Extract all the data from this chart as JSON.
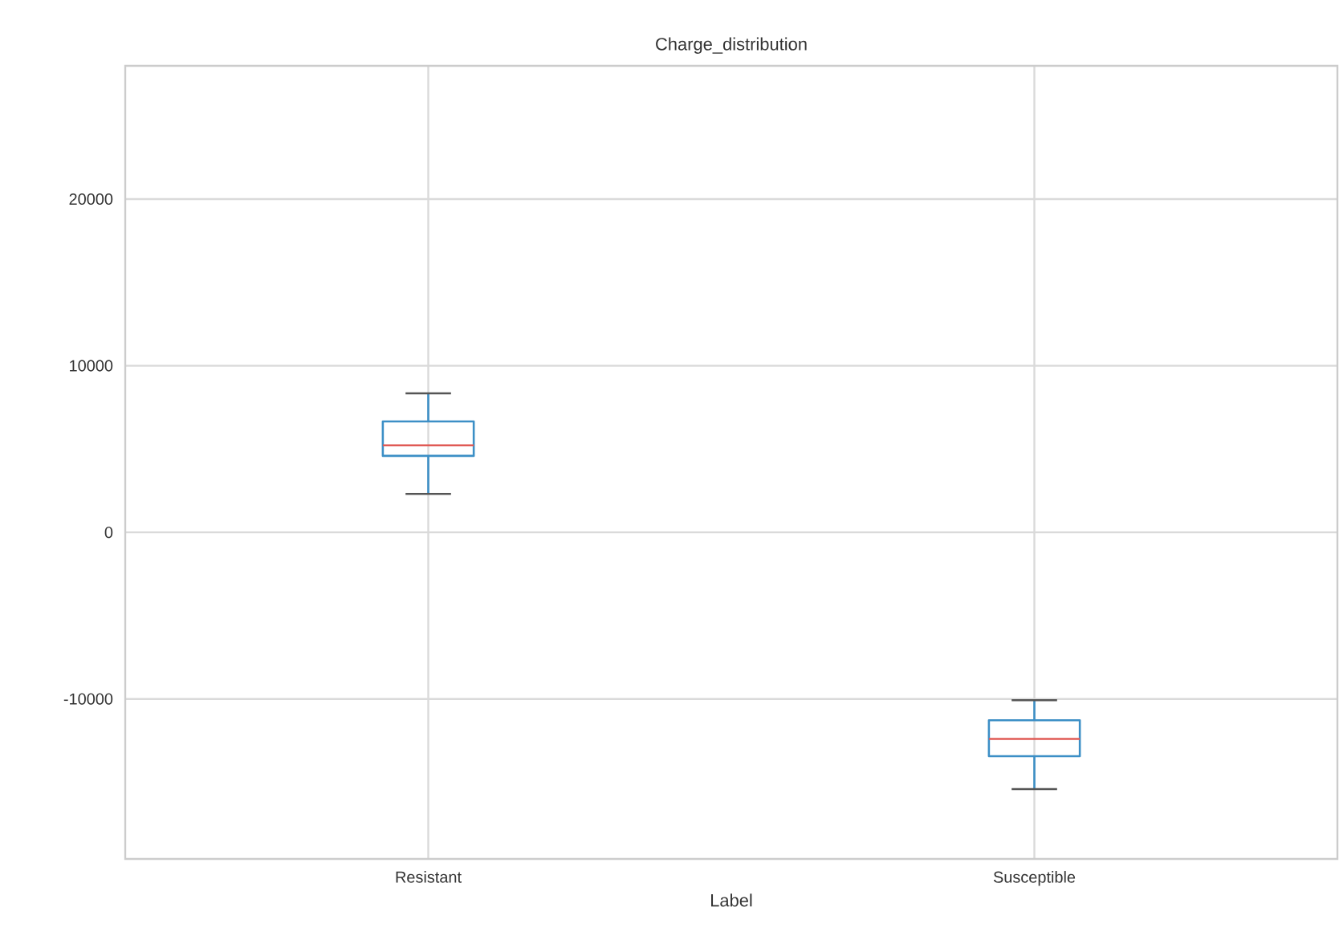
{
  "chart_data": {
    "type": "box",
    "title": "Charge_distribution",
    "xlabel": "Label",
    "categories": [
      "Resistant",
      "Susceptible"
    ],
    "series": [
      {
        "color": "#3c8fc6",
        "boxes": [
          {
            "low": 2310,
            "q1": 4590,
            "median": 5220,
            "q3": 6660,
            "high": 8340
          },
          {
            "low": -15410,
            "q1": -13430,
            "median": -12400,
            "q3": -11280,
            "high": -10070
          }
        ]
      }
    ],
    "ylim": [
      -19600,
      28000
    ],
    "yticks": [
      -10000,
      0,
      10000,
      20000
    ],
    "grid": true
  }
}
